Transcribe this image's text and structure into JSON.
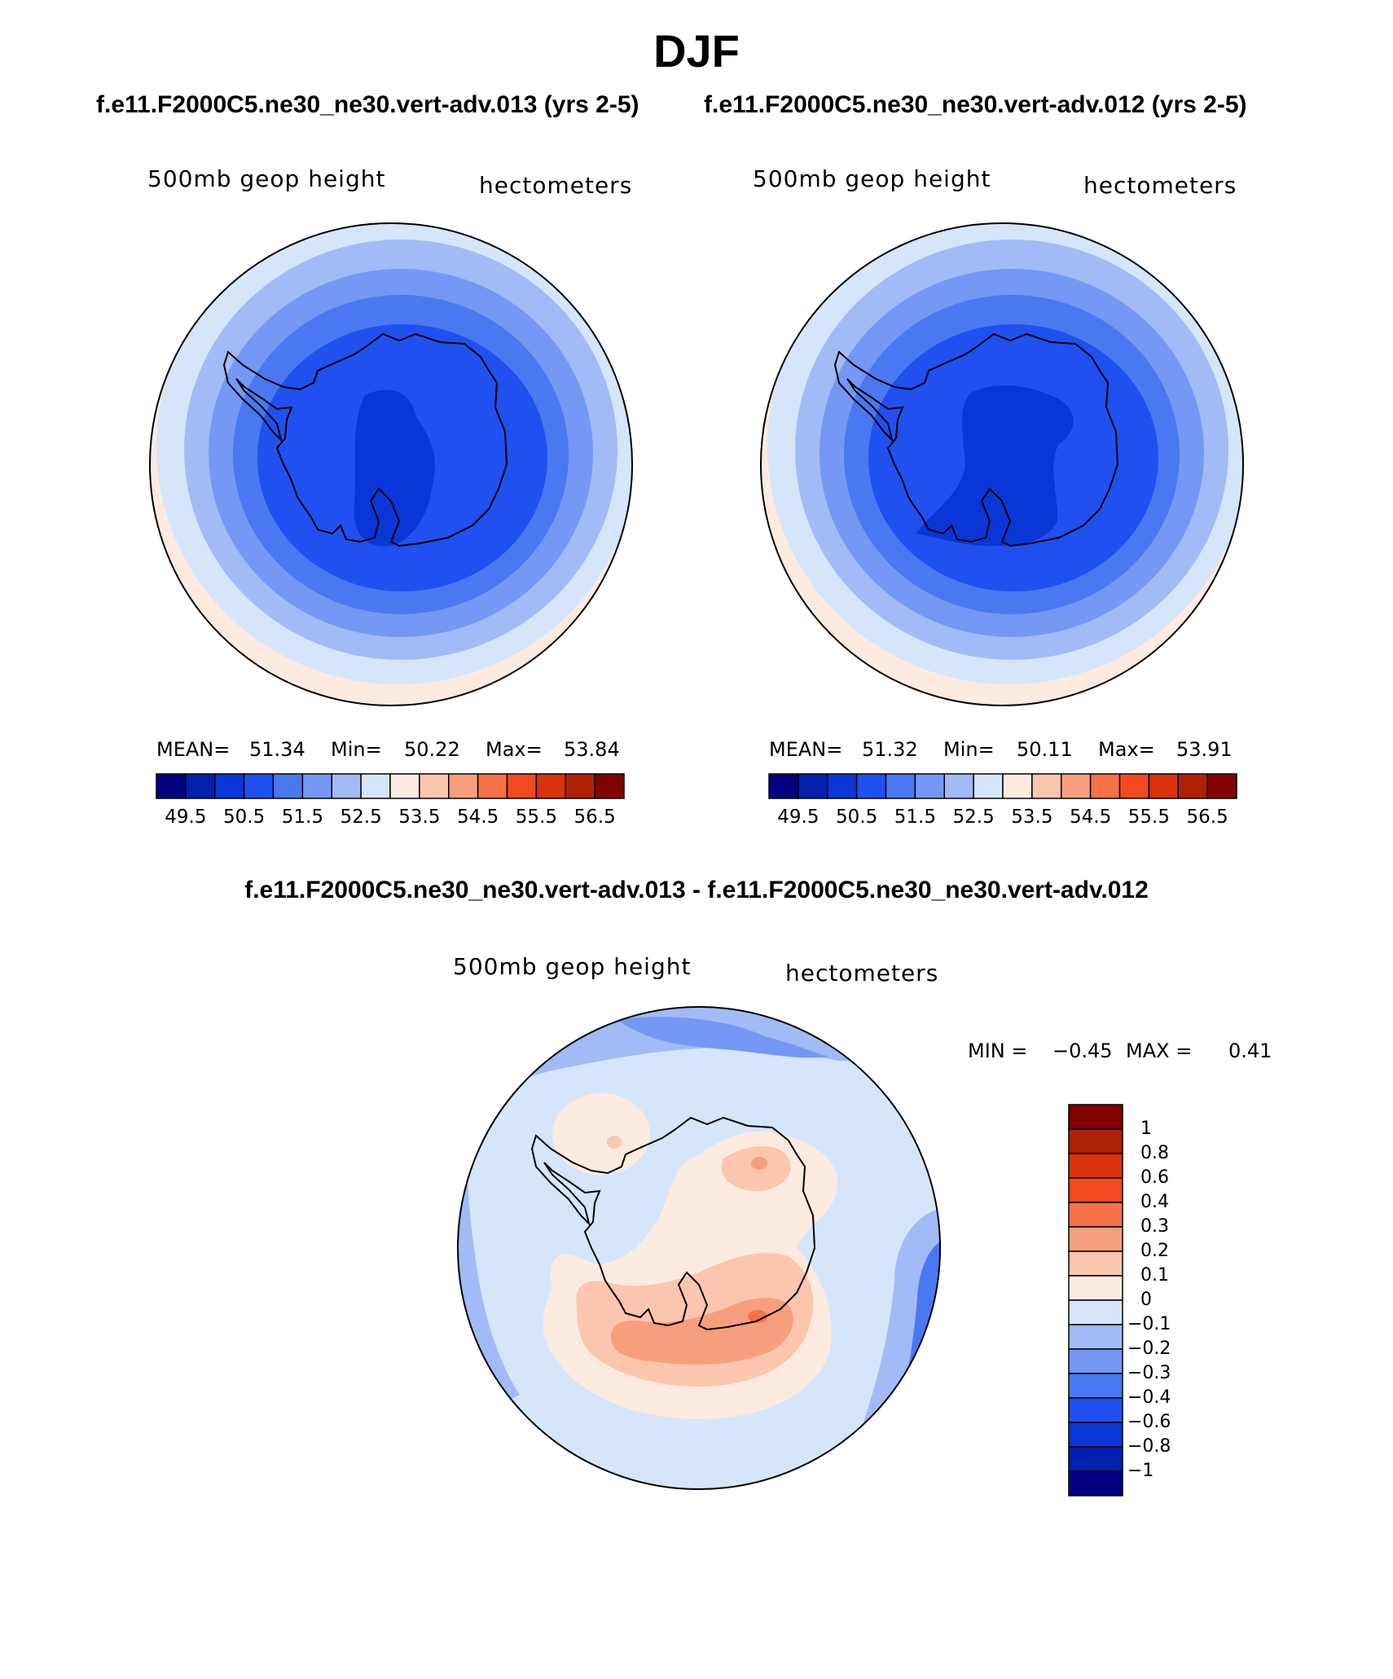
{
  "figure": {
    "title": "DJF",
    "case1_title": "f.e11.F2000C5.ne30_ne30.vert-adv.013 (yrs 2-5)",
    "case2_title": "f.e11.F2000C5.ne30_ne30.vert-adv.012 (yrs 2-5)",
    "diff_title": "f.e11.F2000C5.ne30_ne30.vert-adv.013 - f.e11.F2000C5.ne30_ne30.vert-adv.012"
  },
  "panels": {
    "left": {
      "variable": "500mb geop height",
      "units": "hectometers",
      "stats": {
        "mean_label": "MEAN=",
        "mean": "51.34",
        "min_label": "Min=",
        "min": "50.22",
        "max_label": "Max=",
        "max": "53.84"
      }
    },
    "right": {
      "variable": "500mb geop height",
      "units": "hectometers",
      "stats": {
        "mean_label": "MEAN=",
        "mean": "51.32",
        "min_label": "Min=",
        "min": "50.11",
        "max_label": "Max=",
        "max": "53.91"
      }
    },
    "diff": {
      "variable": "500mb geop height",
      "units": "hectometers",
      "minmax": {
        "min_label": "MIN =",
        "min": "−0.45",
        "max_label": "MAX =",
        "max": "0.41"
      }
    }
  },
  "chart_data": [
    {
      "type": "contour-map",
      "projection": "south-polar-stereographic",
      "variable": "500mb geop height",
      "units": "hectometers",
      "mean": 51.34,
      "min": 50.22,
      "max": 53.84,
      "colorbar_ticks": [
        "49.5",
        "50.5",
        "51.5",
        "52.5",
        "53.5",
        "54.5",
        "55.5",
        "56.5"
      ],
      "colorbar_colors": [
        "#01017f",
        "#0020b0",
        "#0a36d8",
        "#2050f0",
        "#4a78f0",
        "#7498f4",
        "#a2bbf6",
        "#d5e6fb",
        "#fdebe0",
        "#fbc6ad",
        "#f79f7d",
        "#f77246",
        "#f24a1e",
        "#d8330a",
        "#ae2106",
        "#800000"
      ]
    },
    {
      "type": "contour-map",
      "projection": "south-polar-stereographic",
      "variable": "500mb geop height",
      "units": "hectometers",
      "mean": 51.32,
      "min": 50.11,
      "max": 53.91,
      "colorbar_ticks": [
        "49.5",
        "50.5",
        "51.5",
        "52.5",
        "53.5",
        "54.5",
        "55.5",
        "56.5"
      ],
      "colorbar_colors": [
        "#01017f",
        "#0020b0",
        "#0a36d8",
        "#2050f0",
        "#4a78f0",
        "#7498f4",
        "#a2bbf6",
        "#d5e6fb",
        "#fdebe0",
        "#fbc6ad",
        "#f79f7d",
        "#f77246",
        "#f24a1e",
        "#d8330a",
        "#ae2106",
        "#800000"
      ]
    },
    {
      "type": "contour-map",
      "projection": "south-polar-stereographic",
      "variable": "500mb geop height difference",
      "units": "hectometers",
      "min": -0.45,
      "max": 0.41,
      "colorbar_ticks": [
        "1",
        "0.8",
        "0.6",
        "0.4",
        "0.3",
        "0.2",
        "0.1",
        "0",
        "−0.1",
        "−0.2",
        "−0.3",
        "−0.4",
        "−0.6",
        "−0.8",
        "−1"
      ],
      "colorbar_colors": [
        "#800000",
        "#ae2106",
        "#d8330a",
        "#f24a1e",
        "#f77246",
        "#f79f7d",
        "#fbc6ad",
        "#fdebe0",
        "#d5e6fb",
        "#a2bbf6",
        "#7498f4",
        "#4a78f0",
        "#2050f0",
        "#0a36d8",
        "#0020b0",
        "#01017f"
      ]
    }
  ]
}
